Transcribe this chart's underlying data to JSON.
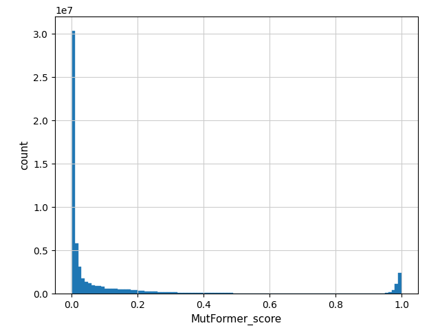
{
  "xlabel": "MutFormer_score",
  "ylabel": "count",
  "bar_color": "#1f77b4",
  "bar_edgecolor": "#1f77b4",
  "xlim": [
    -0.05,
    1.05
  ],
  "ylim": [
    0,
    32000000.0
  ],
  "yticks": [
    0,
    5000000.0,
    10000000.0,
    15000000.0,
    20000000.0,
    25000000.0,
    30000000.0
  ],
  "xticks": [
    0.0,
    0.2,
    0.4,
    0.6,
    0.8,
    1.0
  ],
  "n_bins": 100,
  "bin_heights": [
    30300000,
    5800000,
    3100000,
    1800000,
    1400000,
    1200000,
    1000000,
    900000,
    850000,
    800000,
    600000,
    580000,
    560000,
    540000,
    520000,
    500000,
    480000,
    460000,
    440000,
    420000,
    350000,
    320000,
    290000,
    270000,
    250000,
    230000,
    210000,
    195000,
    180000,
    165000,
    150000,
    140000,
    130000,
    120000,
    110000,
    105000,
    100000,
    95000,
    90000,
    85000,
    80000,
    75000,
    72000,
    69000,
    66000,
    63000,
    60000,
    58000,
    56000,
    54000,
    52000,
    50000,
    48000,
    46000,
    44000,
    42000,
    40000,
    38000,
    36000,
    34000,
    32000,
    30000,
    28000,
    27000,
    26000,
    25000,
    24000,
    23000,
    22000,
    21000,
    20000,
    19000,
    18000,
    17000,
    16000,
    15000,
    14000,
    13000,
    12000,
    11000,
    10000,
    10000,
    10000,
    9000,
    9000,
    9000,
    9000,
    8000,
    9000,
    10000,
    12000,
    15000,
    20000,
    30000,
    50000,
    90000,
    180000,
    400000,
    1100000,
    2400000
  ],
  "background_color": "#ffffff"
}
